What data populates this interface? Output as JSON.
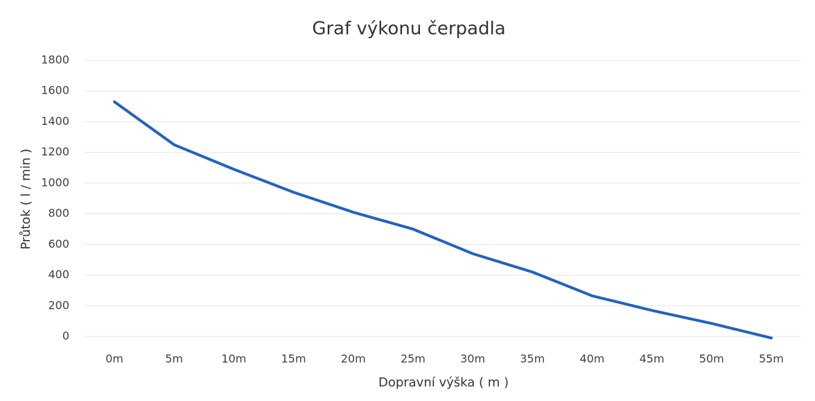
{
  "chart_data": {
    "type": "line",
    "title": "Graf výkonu čerpadla",
    "x_label": "Dopravní výška ( m )",
    "y_label": "Průtok ( l / min )",
    "categories": [
      "0m",
      "5m",
      "10m",
      "15m",
      "20m",
      "25m",
      "30m",
      "35m",
      "40m",
      "45m",
      "50m",
      "55m"
    ],
    "series": [
      {
        "name": "Průtok",
        "color": "#2162c4",
        "values": [
          1530,
          1250,
          1090,
          940,
          810,
          700,
          540,
          420,
          265,
          170,
          85,
          -10
        ]
      }
    ],
    "ylim": [
      0,
      1800
    ],
    "yticks": [
      0,
      200,
      400,
      600,
      800,
      1000,
      1200,
      1400,
      1600,
      1800
    ],
    "grid": true
  }
}
